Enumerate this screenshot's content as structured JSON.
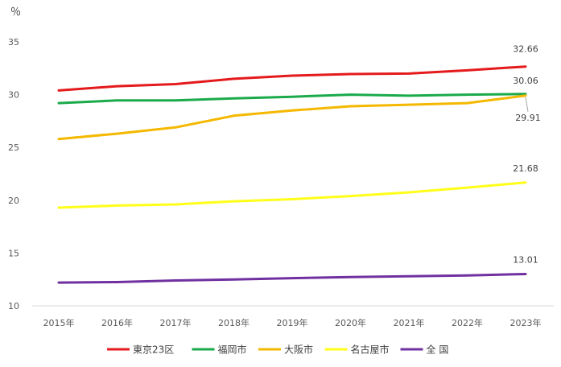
{
  "chart_data": {
    "type": "line",
    "unit_label": "％",
    "categories": [
      "2015年",
      "2016年",
      "2017年",
      "2018年",
      "2019年",
      "2020年",
      "2021年",
      "2022年",
      "2023年"
    ],
    "ylim": [
      10,
      35
    ],
    "yticks": [
      10,
      15,
      20,
      25,
      30,
      35
    ],
    "grid": false,
    "legend_position": "bottom",
    "series": [
      {
        "name": "東京23区",
        "color": "#E41A1C",
        "values": [
          30.4,
          30.8,
          31.0,
          31.5,
          31.8,
          31.95,
          32.0,
          32.3,
          32.66
        ],
        "end_label": "32.66"
      },
      {
        "name": "福岡市",
        "color": "#1AAA4A",
        "values": [
          29.2,
          29.45,
          29.45,
          29.65,
          29.8,
          30.0,
          29.9,
          30.0,
          30.06
        ],
        "end_label": "30.06"
      },
      {
        "name": "大阪市",
        "color": "#F5B800",
        "values": [
          25.8,
          26.3,
          26.9,
          28.0,
          28.5,
          28.9,
          29.05,
          29.2,
          29.91
        ],
        "end_label": "29.91"
      },
      {
        "name": "名古屋市",
        "color": "#FFFF1A",
        "values": [
          19.3,
          19.5,
          19.6,
          19.9,
          20.1,
          20.4,
          20.75,
          21.2,
          21.68
        ],
        "end_label": "21.68"
      },
      {
        "name": "全 国",
        "color": "#7030A0",
        "values": [
          12.2,
          12.25,
          12.4,
          12.5,
          12.62,
          12.72,
          12.8,
          12.88,
          13.01
        ],
        "end_label": "13.01"
      }
    ]
  }
}
